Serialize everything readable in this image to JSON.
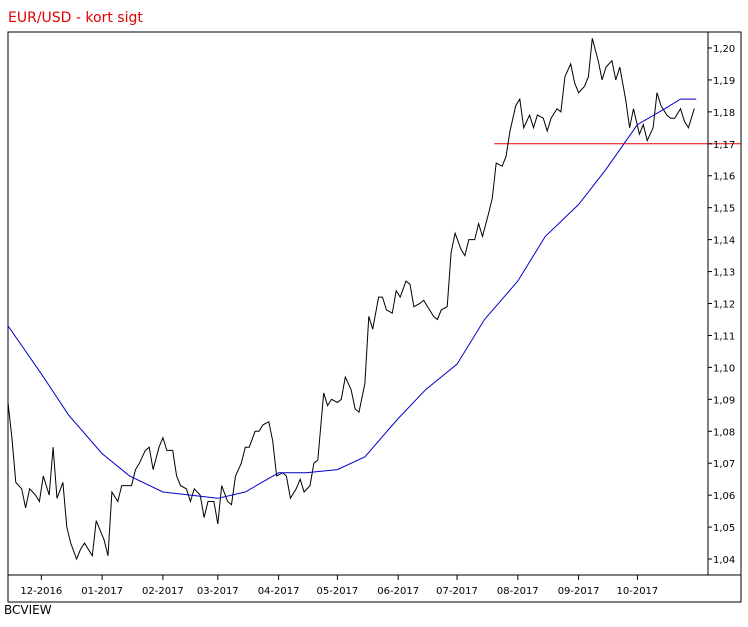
{
  "chart_data": {
    "type": "line",
    "title": "EUR/USD - kort sigt",
    "xlabel": "",
    "ylabel": "",
    "x_tick_labels": [
      "12-2016",
      "01-2017",
      "02-2017",
      "03-2017",
      "04-2017",
      "05-2017",
      "06-2017",
      "07-2017",
      "08-2017",
      "09-2017",
      "10-2017"
    ],
    "y_tick_labels": [
      "1,04",
      "1,05",
      "1,06",
      "1,07",
      "1,08",
      "1,09",
      "1,10",
      "1,11",
      "1,12",
      "1,13",
      "1,14",
      "1,15",
      "1,16",
      "1,17",
      "1,18",
      "1,19",
      "1,20"
    ],
    "ylim": [
      1.035,
      1.205
    ],
    "y_axis_position": "right",
    "grid": false,
    "horizontal_line": {
      "y": 1.17,
      "color": "#e00000",
      "from_date": "2017-07-20"
    },
    "series": [
      {
        "style": "price",
        "color": "#000000",
        "points": [
          [
            "2016-11-14",
            1.089
          ],
          [
            "2016-11-16",
            1.078
          ],
          [
            "2016-11-18",
            1.064
          ],
          [
            "2016-11-21",
            1.062
          ],
          [
            "2016-11-23",
            1.056
          ],
          [
            "2016-11-25",
            1.062
          ],
          [
            "2016-11-28",
            1.06
          ],
          [
            "2016-11-30",
            1.058
          ],
          [
            "2016-12-02",
            1.066
          ],
          [
            "2016-12-05",
            1.06
          ],
          [
            "2016-12-07",
            1.075
          ],
          [
            "2016-12-09",
            1.059
          ],
          [
            "2016-12-12",
            1.064
          ],
          [
            "2016-12-14",
            1.05
          ],
          [
            "2016-12-16",
            1.045
          ],
          [
            "2016-12-19",
            1.04
          ],
          [
            "2016-12-21",
            1.043
          ],
          [
            "2016-12-23",
            1.045
          ],
          [
            "2016-12-27",
            1.041
          ],
          [
            "2016-12-29",
            1.052
          ],
          [
            "2017-01-02",
            1.046
          ],
          [
            "2017-01-04",
            1.041
          ],
          [
            "2017-01-06",
            1.061
          ],
          [
            "2017-01-09",
            1.058
          ],
          [
            "2017-01-11",
            1.063
          ],
          [
            "2017-01-13",
            1.063
          ],
          [
            "2017-01-16",
            1.063
          ],
          [
            "2017-01-18",
            1.068
          ],
          [
            "2017-01-20",
            1.07
          ],
          [
            "2017-01-23",
            1.074
          ],
          [
            "2017-01-25",
            1.075
          ],
          [
            "2017-01-27",
            1.068
          ],
          [
            "2017-01-30",
            1.075
          ],
          [
            "2017-02-01",
            1.078
          ],
          [
            "2017-02-03",
            1.074
          ],
          [
            "2017-02-06",
            1.074
          ],
          [
            "2017-02-08",
            1.066
          ],
          [
            "2017-02-10",
            1.063
          ],
          [
            "2017-02-13",
            1.062
          ],
          [
            "2017-02-15",
            1.058
          ],
          [
            "2017-02-17",
            1.062
          ],
          [
            "2017-02-20",
            1.06
          ],
          [
            "2017-02-22",
            1.053
          ],
          [
            "2017-02-24",
            1.058
          ],
          [
            "2017-02-27",
            1.058
          ],
          [
            "2017-03-01",
            1.051
          ],
          [
            "2017-03-03",
            1.063
          ],
          [
            "2017-03-06",
            1.058
          ],
          [
            "2017-03-08",
            1.057
          ],
          [
            "2017-03-10",
            1.066
          ],
          [
            "2017-03-13",
            1.07
          ],
          [
            "2017-03-15",
            1.075
          ],
          [
            "2017-03-17",
            1.075
          ],
          [
            "2017-03-20",
            1.08
          ],
          [
            "2017-03-22",
            1.08
          ],
          [
            "2017-03-24",
            1.082
          ],
          [
            "2017-03-27",
            1.083
          ],
          [
            "2017-03-29",
            1.077
          ],
          [
            "2017-03-31",
            1.066
          ],
          [
            "2017-04-03",
            1.067
          ],
          [
            "2017-04-05",
            1.066
          ],
          [
            "2017-04-07",
            1.059
          ],
          [
            "2017-04-10",
            1.062
          ],
          [
            "2017-04-12",
            1.065
          ],
          [
            "2017-04-14",
            1.061
          ],
          [
            "2017-04-17",
            1.063
          ],
          [
            "2017-04-19",
            1.07
          ],
          [
            "2017-04-21",
            1.071
          ],
          [
            "2017-04-24",
            1.092
          ],
          [
            "2017-04-26",
            1.088
          ],
          [
            "2017-04-28",
            1.09
          ],
          [
            "2017-05-01",
            1.089
          ],
          [
            "2017-05-03",
            1.09
          ],
          [
            "2017-05-05",
            1.097
          ],
          [
            "2017-05-08",
            1.093
          ],
          [
            "2017-05-10",
            1.087
          ],
          [
            "2017-05-12",
            1.086
          ],
          [
            "2017-05-15",
            1.095
          ],
          [
            "2017-05-17",
            1.116
          ],
          [
            "2017-05-19",
            1.112
          ],
          [
            "2017-05-22",
            1.122
          ],
          [
            "2017-05-24",
            1.122
          ],
          [
            "2017-05-26",
            1.118
          ],
          [
            "2017-05-29",
            1.117
          ],
          [
            "2017-05-31",
            1.124
          ],
          [
            "2017-06-02",
            1.122
          ],
          [
            "2017-06-05",
            1.127
          ],
          [
            "2017-06-07",
            1.126
          ],
          [
            "2017-06-09",
            1.119
          ],
          [
            "2017-06-12",
            1.12
          ],
          [
            "2017-06-14",
            1.121
          ],
          [
            "2017-06-16",
            1.119
          ],
          [
            "2017-06-19",
            1.116
          ],
          [
            "2017-06-21",
            1.115
          ],
          [
            "2017-06-23",
            1.118
          ],
          [
            "2017-06-26",
            1.119
          ],
          [
            "2017-06-28",
            1.136
          ],
          [
            "2017-06-30",
            1.142
          ],
          [
            "2017-07-03",
            1.137
          ],
          [
            "2017-07-05",
            1.135
          ],
          [
            "2017-07-07",
            1.14
          ],
          [
            "2017-07-10",
            1.14
          ],
          [
            "2017-07-12",
            1.145
          ],
          [
            "2017-07-14",
            1.141
          ],
          [
            "2017-07-17",
            1.148
          ],
          [
            "2017-07-19",
            1.153
          ],
          [
            "2017-07-21",
            1.164
          ],
          [
            "2017-07-24",
            1.163
          ],
          [
            "2017-07-26",
            1.166
          ],
          [
            "2017-07-28",
            1.174
          ],
          [
            "2017-07-31",
            1.182
          ],
          [
            "2017-08-02",
            1.184
          ],
          [
            "2017-08-04",
            1.175
          ],
          [
            "2017-08-07",
            1.179
          ],
          [
            "2017-08-09",
            1.175
          ],
          [
            "2017-08-11",
            1.179
          ],
          [
            "2017-08-14",
            1.178
          ],
          [
            "2017-08-16",
            1.174
          ],
          [
            "2017-08-18",
            1.178
          ],
          [
            "2017-08-21",
            1.181
          ],
          [
            "2017-08-23",
            1.18
          ],
          [
            "2017-08-25",
            1.191
          ],
          [
            "2017-08-28",
            1.195
          ],
          [
            "2017-08-30",
            1.189
          ],
          [
            "2017-09-01",
            1.186
          ],
          [
            "2017-09-04",
            1.188
          ],
          [
            "2017-09-06",
            1.191
          ],
          [
            "2017-09-08",
            1.203
          ],
          [
            "2017-09-11",
            1.196
          ],
          [
            "2017-09-13",
            1.19
          ],
          [
            "2017-09-15",
            1.194
          ],
          [
            "2017-09-18",
            1.196
          ],
          [
            "2017-09-20",
            1.19
          ],
          [
            "2017-09-22",
            1.194
          ],
          [
            "2017-09-25",
            1.184
          ],
          [
            "2017-09-27",
            1.175
          ],
          [
            "2017-09-29",
            1.181
          ],
          [
            "2017-10-02",
            1.173
          ],
          [
            "2017-10-04",
            1.176
          ],
          [
            "2017-10-06",
            1.171
          ],
          [
            "2017-10-09",
            1.175
          ],
          [
            "2017-10-11",
            1.186
          ],
          [
            "2017-10-13",
            1.182
          ],
          [
            "2017-10-16",
            1.179
          ],
          [
            "2017-10-18",
            1.178
          ],
          [
            "2017-10-20",
            1.178
          ],
          [
            "2017-10-23",
            1.181
          ],
          [
            "2017-10-25",
            1.177
          ],
          [
            "2017-10-27",
            1.175
          ],
          [
            "2017-10-30",
            1.181
          ]
        ]
      },
      {
        "style": "moving-average",
        "color": "#0000cc",
        "points": [
          [
            "2016-11-14",
            1.113
          ],
          [
            "2016-12-01",
            1.098
          ],
          [
            "2016-12-15",
            1.085
          ],
          [
            "2017-01-01",
            1.073
          ],
          [
            "2017-01-15",
            1.066
          ],
          [
            "2017-02-01",
            1.061
          ],
          [
            "2017-02-15",
            1.06
          ],
          [
            "2017-03-01",
            1.059
          ],
          [
            "2017-03-15",
            1.061
          ],
          [
            "2017-04-01",
            1.067
          ],
          [
            "2017-04-15",
            1.067
          ],
          [
            "2017-05-01",
            1.068
          ],
          [
            "2017-05-15",
            1.072
          ],
          [
            "2017-06-01",
            1.084
          ],
          [
            "2017-06-15",
            1.093
          ],
          [
            "2017-07-01",
            1.101
          ],
          [
            "2017-07-15",
            1.115
          ],
          [
            "2017-08-01",
            1.127
          ],
          [
            "2017-08-15",
            1.141
          ],
          [
            "2017-09-01",
            1.151
          ],
          [
            "2017-09-15",
            1.162
          ],
          [
            "2017-10-01",
            1.176
          ],
          [
            "2017-10-15",
            1.181
          ],
          [
            "2017-10-23",
            1.184
          ],
          [
            "2017-10-31",
            1.184
          ]
        ]
      }
    ]
  },
  "footer": {
    "credit": "BCVIEW"
  }
}
